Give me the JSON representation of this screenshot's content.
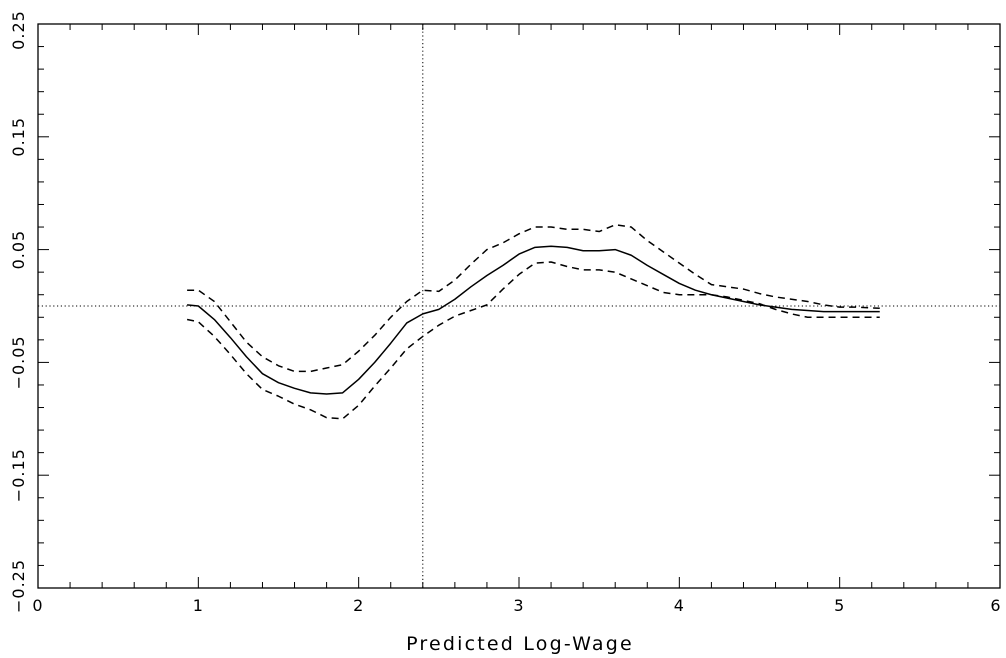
{
  "chart_data": {
    "type": "line",
    "title": "",
    "xlabel": "Predicted Log-Wage",
    "ylabel": "",
    "xlim": [
      0,
      6
    ],
    "ylim": [
      -0.25,
      0.25
    ],
    "x_ticks": [
      0,
      1,
      2,
      3,
      4,
      5,
      6
    ],
    "y_ticks": [
      -0.25,
      -0.15,
      -0.05,
      0.05,
      0.15,
      0.25
    ],
    "x_tick_labels": [
      "0",
      "1",
      "2",
      "3",
      "4",
      "5",
      "6"
    ],
    "y_tick_labels": [
      "-0.25",
      "-0.15",
      "-0.05",
      "0.05",
      "0.15",
      "0.25"
    ],
    "x_minor_step": 0.2,
    "y_minor_step": 0.02,
    "grid": false,
    "legend": "none",
    "reference_lines": {
      "horizontal_y": 0,
      "vertical_x": 2.4,
      "style": "dotted"
    },
    "series": [
      {
        "style": "solid",
        "x": [
          0.93,
          1.0,
          1.1,
          1.2,
          1.3,
          1.4,
          1.5,
          1.6,
          1.7,
          1.8,
          1.9,
          2.0,
          2.1,
          2.2,
          2.3,
          2.4,
          2.5,
          2.6,
          2.7,
          2.8,
          2.9,
          3.0,
          3.1,
          3.2,
          3.3,
          3.4,
          3.5,
          3.6,
          3.7,
          3.8,
          3.9,
          4.0,
          4.1,
          4.2,
          4.3,
          4.4,
          4.5,
          4.6,
          4.7,
          4.8,
          4.9,
          5.0,
          5.1,
          5.25
        ],
        "y": [
          0.001,
          0.0,
          -0.012,
          -0.028,
          -0.045,
          -0.06,
          -0.068,
          -0.073,
          -0.077,
          -0.078,
          -0.077,
          -0.065,
          -0.05,
          -0.033,
          -0.015,
          -0.007,
          -0.003,
          0.006,
          0.017,
          0.027,
          0.036,
          0.046,
          0.052,
          0.053,
          0.052,
          0.049,
          0.049,
          0.05,
          0.045,
          0.036,
          0.028,
          0.02,
          0.014,
          0.01,
          0.007,
          0.004,
          0.001,
          -0.001,
          -0.003,
          -0.004,
          -0.005,
          -0.005,
          -0.005,
          -0.005
        ]
      },
      {
        "style": "dashed",
        "x": [
          0.93,
          1.0,
          1.1,
          1.2,
          1.3,
          1.4,
          1.5,
          1.6,
          1.7,
          1.8,
          1.9,
          2.0,
          2.1,
          2.2,
          2.3,
          2.4,
          2.5,
          2.6,
          2.7,
          2.8,
          2.9,
          3.0,
          3.1,
          3.2,
          3.3,
          3.4,
          3.5,
          3.6,
          3.7,
          3.8,
          3.9,
          4.0,
          4.1,
          4.2,
          4.3,
          4.4,
          4.5,
          4.6,
          4.7,
          4.8,
          4.9,
          5.0,
          5.1,
          5.25
        ],
        "y": [
          0.014,
          0.014,
          0.004,
          -0.014,
          -0.032,
          -0.045,
          -0.053,
          -0.058,
          -0.058,
          -0.055,
          -0.052,
          -0.04,
          -0.026,
          -0.01,
          0.004,
          0.014,
          0.013,
          0.023,
          0.037,
          0.05,
          0.056,
          0.064,
          0.07,
          0.07,
          0.068,
          0.068,
          0.066,
          0.072,
          0.07,
          0.058,
          0.048,
          0.038,
          0.028,
          0.019,
          0.017,
          0.015,
          0.011,
          0.008,
          0.006,
          0.004,
          0.001,
          -0.001,
          -0.001,
          -0.002
        ]
      },
      {
        "style": "dashed",
        "x": [
          0.93,
          1.0,
          1.1,
          1.2,
          1.3,
          1.4,
          1.5,
          1.6,
          1.7,
          1.8,
          1.9,
          2.0,
          2.1,
          2.2,
          2.3,
          2.4,
          2.5,
          2.6,
          2.7,
          2.8,
          2.9,
          3.0,
          3.1,
          3.2,
          3.3,
          3.4,
          3.5,
          3.6,
          3.7,
          3.8,
          3.9,
          4.0,
          4.1,
          4.2,
          4.3,
          4.4,
          4.5,
          4.6,
          4.7,
          4.8,
          4.9,
          5.0,
          5.1,
          5.25
        ],
        "y": [
          -0.012,
          -0.014,
          -0.027,
          -0.043,
          -0.06,
          -0.074,
          -0.08,
          -0.087,
          -0.092,
          -0.099,
          -0.1,
          -0.088,
          -0.071,
          -0.055,
          -0.038,
          -0.027,
          -0.017,
          -0.009,
          -0.004,
          0.001,
          0.015,
          0.028,
          0.038,
          0.039,
          0.035,
          0.032,
          0.032,
          0.03,
          0.024,
          0.018,
          0.012,
          0.01,
          0.01,
          0.01,
          0.008,
          0.005,
          0.002,
          -0.003,
          -0.007,
          -0.01,
          -0.01,
          -0.01,
          -0.01,
          -0.01
        ]
      }
    ]
  }
}
